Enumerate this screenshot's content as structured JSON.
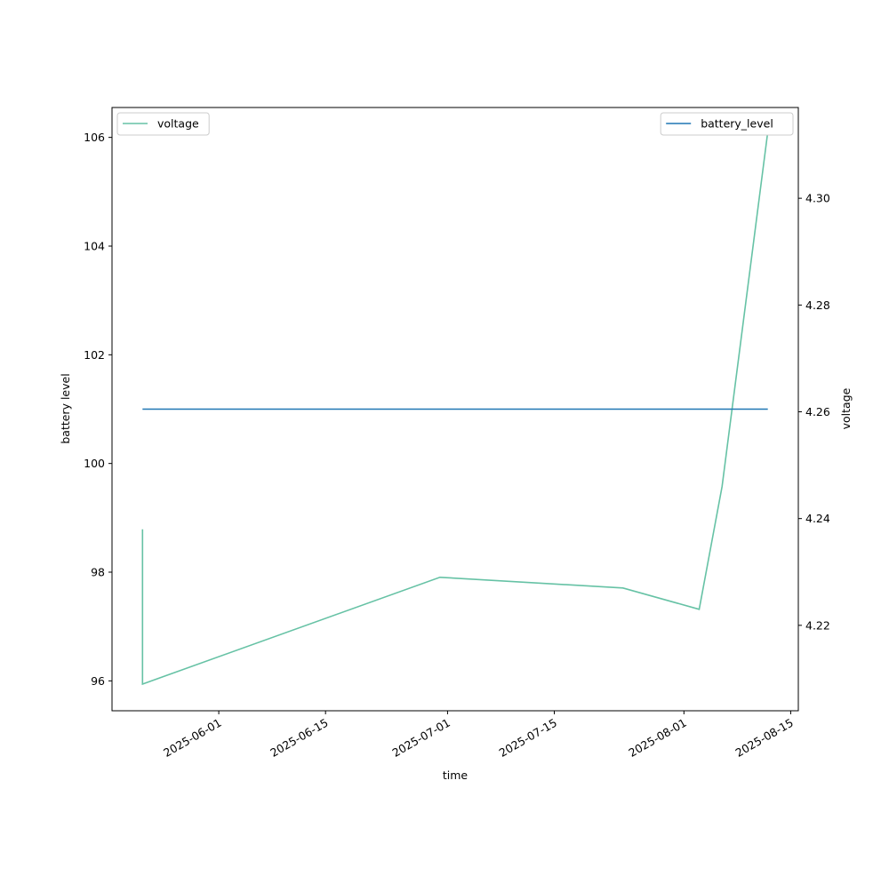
{
  "chart_data": {
    "type": "line",
    "x_label": "time",
    "y_label": "battery level",
    "y2_label": "voltage",
    "x": [
      "2025-05-22",
      "2025-05-22",
      "2025-06-30",
      "2025-07-24",
      "2025-08-03",
      "2025-08-06",
      "2025-08-12"
    ],
    "xlim": [
      "2025-05-18",
      "2025-08-16"
    ],
    "xticks": [
      "2025-06-01",
      "2025-06-15",
      "2025-07-01",
      "2025-07-15",
      "2025-08-01",
      "2025-08-15"
    ],
    "ylim": [
      95.45,
      106.55
    ],
    "yticks": [
      96,
      98,
      100,
      102,
      104,
      106
    ],
    "y2lim": [
      4.204,
      4.317
    ],
    "y2ticks": [
      {
        "value": 4.22,
        "label": "4.22"
      },
      {
        "value": 4.24,
        "label": "4.24"
      },
      {
        "value": 4.26,
        "label": "4.26"
      },
      {
        "value": 4.28,
        "label": "4.28"
      },
      {
        "value": 4.3,
        "label": "4.30"
      }
    ],
    "series": [
      {
        "name": "voltage",
        "color": "#66c2a5",
        "axis": "y2",
        "legend": "upper left",
        "values": [
          4.238,
          4.209,
          4.229,
          4.227,
          4.223,
          4.246,
          4.3125
        ]
      },
      {
        "name": "battery_level",
        "color": "#1f77b4",
        "axis": "y",
        "legend": "upper right",
        "values": [
          101,
          101,
          101,
          101,
          101,
          101,
          101
        ]
      }
    ]
  }
}
